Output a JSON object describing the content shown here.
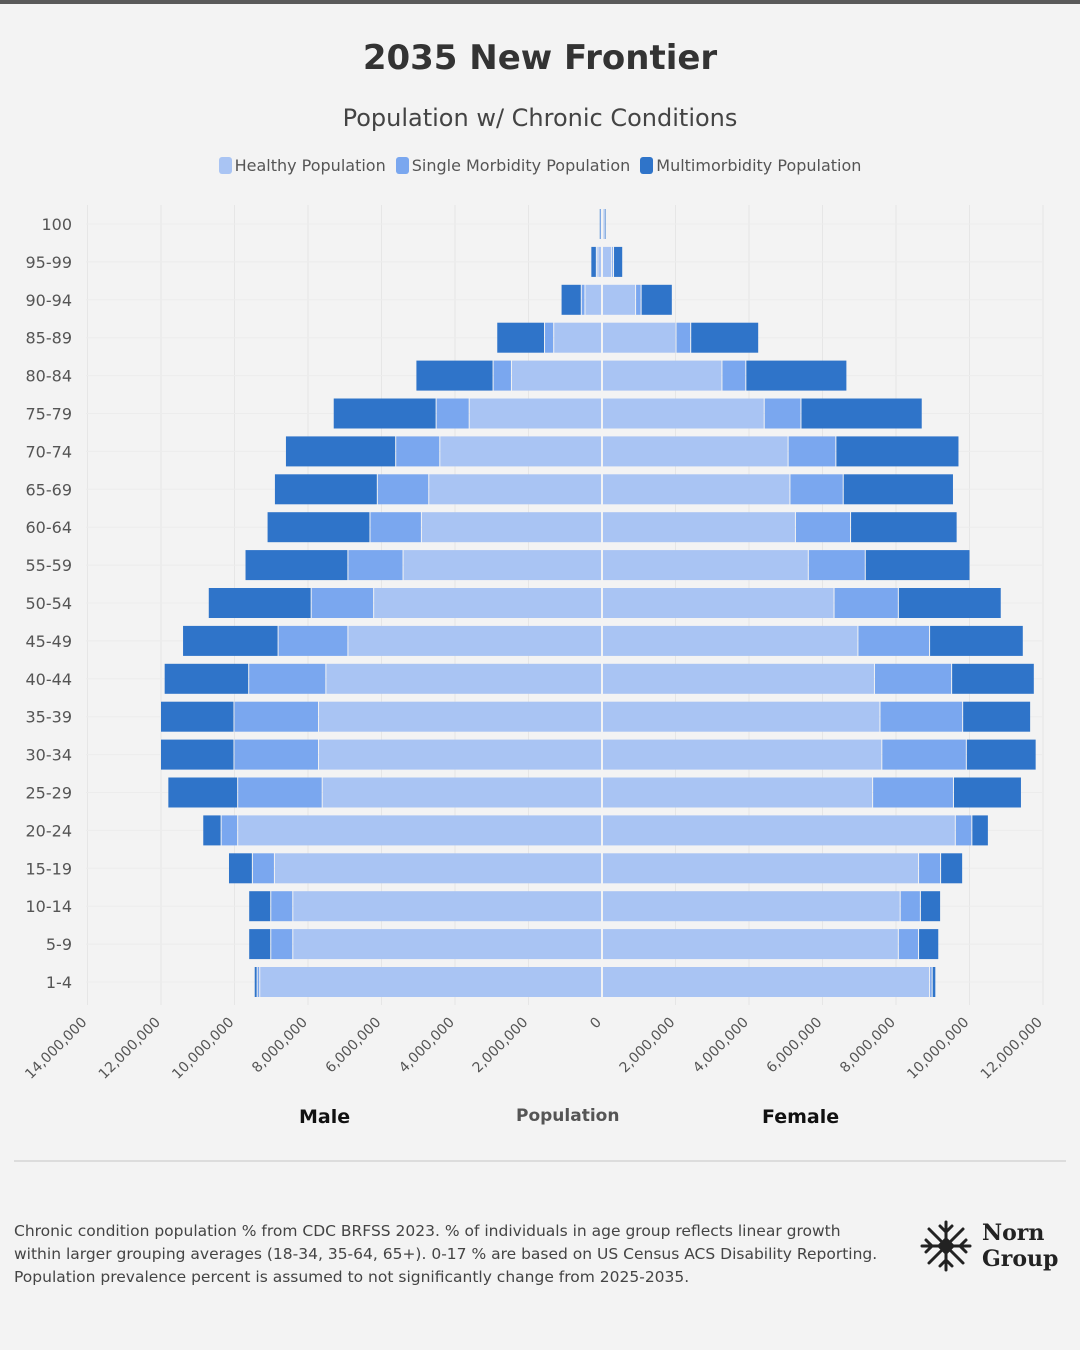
{
  "title": "2035 New Frontier",
  "subtitle": "Population w/ Chronic Conditions",
  "legend": [
    {
      "label": "Healthy Population",
      "color": "#a9c4f3"
    },
    {
      "label": "Single Morbidity Population",
      "color": "#7aa7ef"
    },
    {
      "label": "Multimorbidity Population",
      "color": "#2f74c9"
    }
  ],
  "chart_data": {
    "type": "bar",
    "orientation": "horizontal-population-pyramid",
    "categories": [
      "100",
      "95-99",
      "90-94",
      "85-89",
      "80-84",
      "75-79",
      "70-74",
      "65-69",
      "60-64",
      "55-59",
      "50-54",
      "45-49",
      "40-44",
      "35-39",
      "30-34",
      "25-29",
      "20-24",
      "15-19",
      "10-14",
      "5-9",
      "1-4"
    ],
    "male": {
      "healthy": [
        20000,
        100000,
        450000,
        1300000,
        2450000,
        3600000,
        4400000,
        4700000,
        4900000,
        5400000,
        6200000,
        6900000,
        7500000,
        7700000,
        7700000,
        7600000,
        9900000,
        8900000,
        8400000,
        8400000,
        9300000
      ],
      "single": [
        20000,
        40000,
        100000,
        250000,
        500000,
        900000,
        1200000,
        1400000,
        1400000,
        1500000,
        1700000,
        1900000,
        2100000,
        2300000,
        2300000,
        2300000,
        450000,
        600000,
        600000,
        600000,
        70000
      ],
      "multi": [
        20000,
        150000,
        550000,
        1300000,
        2100000,
        2800000,
        3000000,
        2800000,
        2800000,
        2800000,
        2800000,
        2600000,
        2300000,
        2000000,
        2000000,
        1900000,
        500000,
        650000,
        600000,
        600000,
        80000
      ]
    },
    "female": {
      "healthy": [
        40000,
        250000,
        900000,
        2000000,
        3250000,
        4400000,
        5050000,
        5100000,
        5250000,
        5600000,
        6300000,
        6950000,
        7400000,
        7550000,
        7600000,
        7350000,
        9600000,
        8600000,
        8100000,
        8050000,
        8900000
      ],
      "single": [
        20000,
        50000,
        150000,
        400000,
        650000,
        1000000,
        1300000,
        1450000,
        1500000,
        1550000,
        1750000,
        1950000,
        2100000,
        2250000,
        2300000,
        2200000,
        450000,
        600000,
        550000,
        550000,
        70000
      ],
      "multi": [
        20000,
        250000,
        850000,
        1850000,
        2750000,
        3300000,
        3350000,
        3000000,
        2900000,
        2850000,
        2800000,
        2550000,
        2250000,
        1850000,
        1900000,
        1850000,
        450000,
        600000,
        550000,
        550000,
        100000
      ]
    },
    "x_axis_ticks": [
      "14,000,000",
      "12,000,000",
      "10,000,000",
      "8,000,000",
      "6,000,000",
      "4,000,000",
      "2,000,000",
      "0",
      "2,000,000",
      "4,000,000",
      "6,000,000",
      "8,000,000",
      "10,000,000",
      "12,000,000"
    ],
    "xlim": [
      -14000000,
      12000000
    ],
    "xlabel": "Population",
    "left_label": "Male",
    "right_label": "Female"
  },
  "footnote": [
    "Chronic condition population % from CDC BRFSS 2023. % of individuals in age group reflects linear growth",
    "within larger grouping averages (18-34, 35-64, 65+). 0-17 % are based on US Census ACS Disability Reporting.",
    "Population prevalence percent is assumed to not significantly change from 2025-2035."
  ],
  "logo": {
    "line1": "Norn",
    "line2": "Group"
  }
}
